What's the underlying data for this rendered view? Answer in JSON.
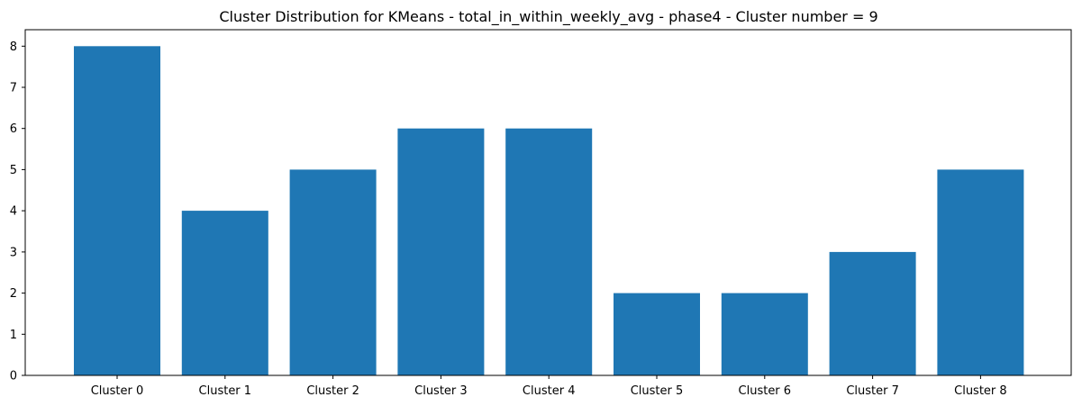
{
  "chart_data": {
    "type": "bar",
    "title": "Cluster Distribution for KMeans - total_in_within_weekly_avg - phase4 - Cluster number = 9",
    "xlabel": "",
    "ylabel": "",
    "categories": [
      "Cluster 0",
      "Cluster 1",
      "Cluster 2",
      "Cluster 3",
      "Cluster 4",
      "Cluster 5",
      "Cluster 6",
      "Cluster 7",
      "Cluster 8"
    ],
    "values": [
      8,
      4,
      5,
      6,
      6,
      2,
      2,
      3,
      5
    ],
    "ylim": [
      0,
      8.4
    ],
    "yticks": [
      0,
      1,
      2,
      3,
      4,
      5,
      6,
      7,
      8
    ],
    "grid": false,
    "legend": "none",
    "bar_color": "#1f77b4",
    "axis_color": "#000000"
  }
}
